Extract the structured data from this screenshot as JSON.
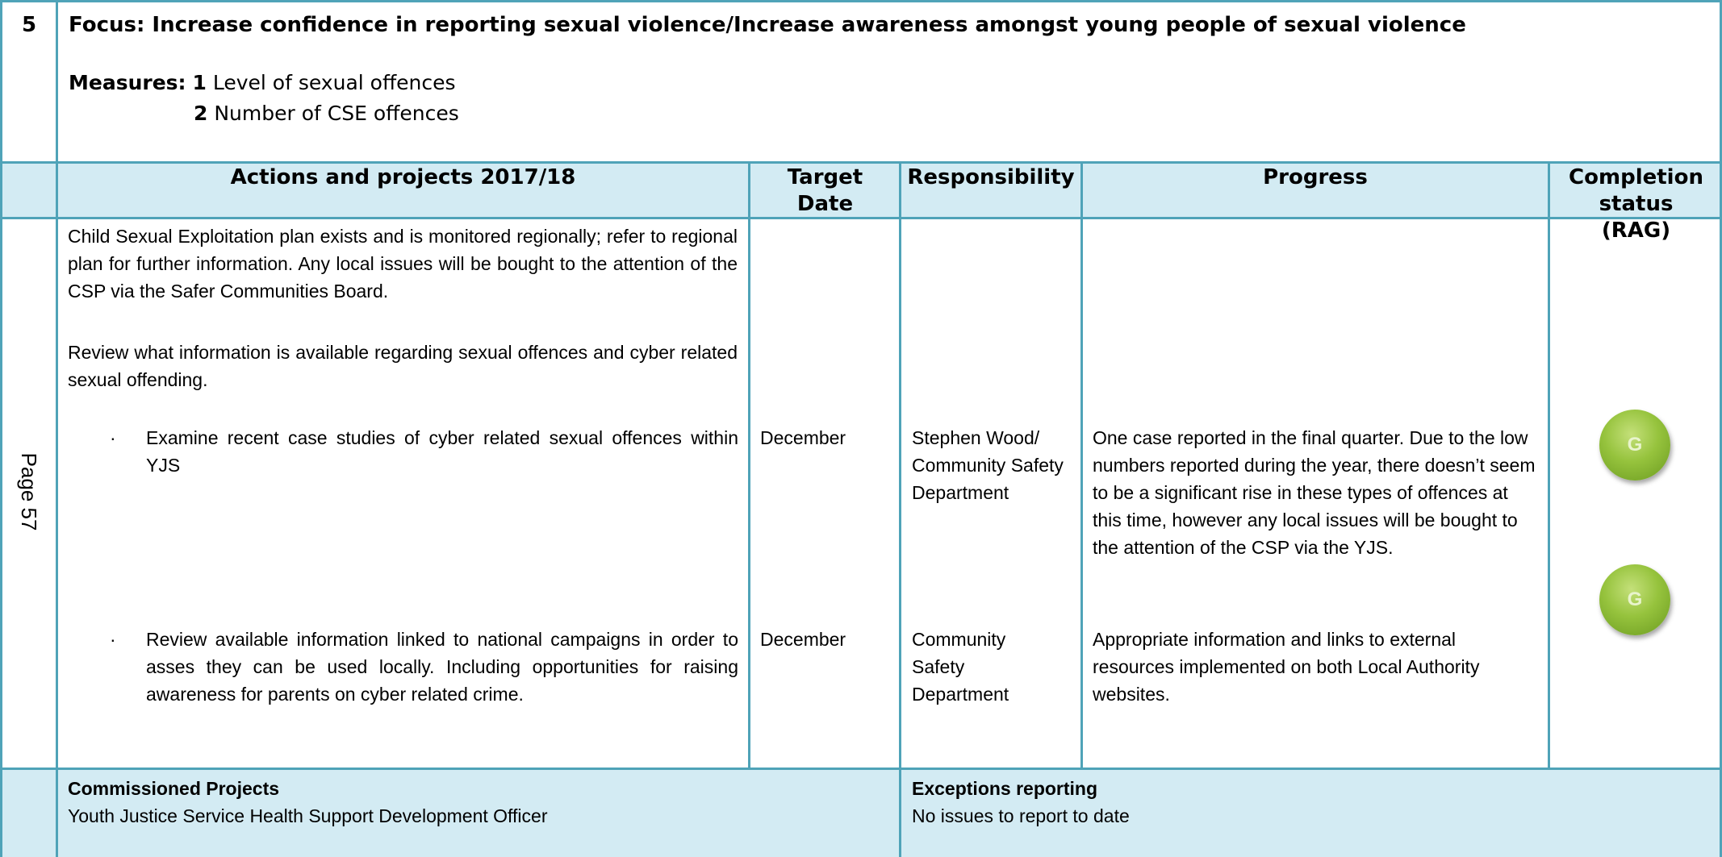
{
  "row_number": "5",
  "focus": "Focus: Increase confidence in reporting sexual violence/Increase awareness amongst young people of sexual violence",
  "measures": {
    "label": "Measures:",
    "items": [
      {
        "number": "1",
        "text": "Level of sexual offences"
      },
      {
        "number": "2",
        "text": "Number of CSE offences"
      }
    ]
  },
  "table": {
    "headers": [
      "Actions and projects 2017/18",
      "Target Date",
      "Responsibility",
      "Progress",
      "Completion status (RAG)"
    ],
    "intro": [
      "Child Sexual Exploitation plan exists and is monitored regionally; refer to regional plan for further information. Any local issues will be bought to the attention of the CSP via the Safer Communities Board.",
      "Review what information is available regarding sexual offences and cyber related sexual offending."
    ],
    "rows": [
      {
        "action": "Examine recent case studies of cyber related sexual offences within YJS",
        "target_date": "December",
        "responsibility": "Stephen Wood/ Community Safety Department",
        "progress": "One case reported in the final quarter. Due to the low numbers reported during the year, there doesn’t seem to be a significant rise in these types of offences at this time, however any local issues will be bought to the attention of the CSP via the YJS.",
        "status": "G"
      },
      {
        "action": "Review available information linked to national campaigns in order to asses they can be used locally. Including opportunities for raising awareness for parents on cyber related crime.",
        "target_date": "December",
        "responsibility": "Community Safety Department",
        "progress": "Appropriate information and links to external resources implemented on both Local Authority websites.",
        "status": "G"
      }
    ]
  },
  "page_label": "Page 57",
  "footer": {
    "commissioned": {
      "title": "Commissioned Projects",
      "text": "Youth Justice Service Health Support Development Officer"
    },
    "exceptions": {
      "title": "Exceptions reporting",
      "text": "No issues to report to date"
    }
  }
}
